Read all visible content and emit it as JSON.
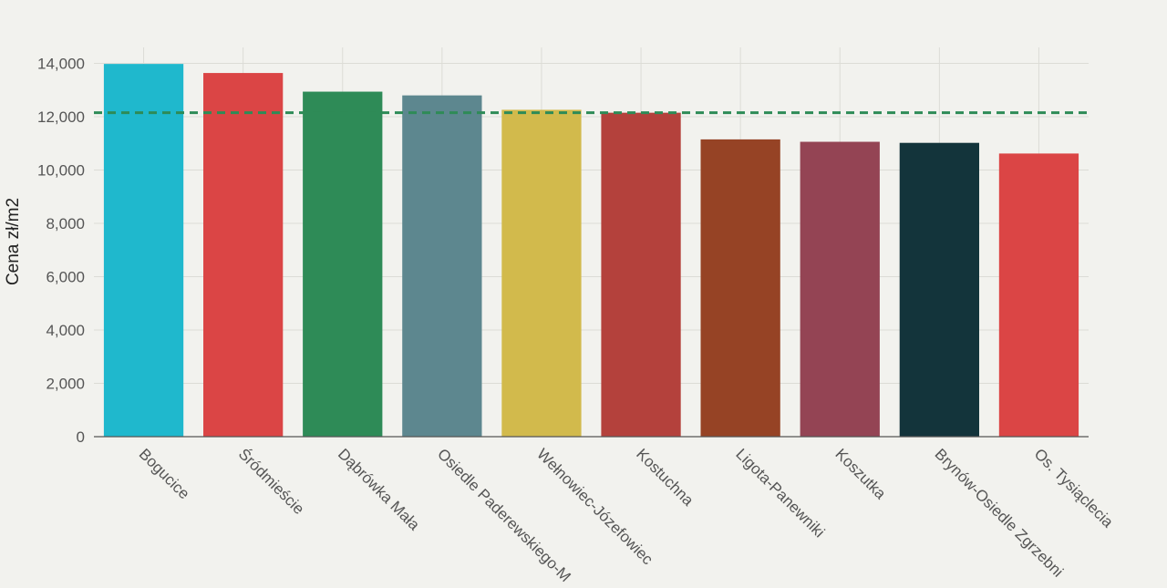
{
  "chart_data": {
    "type": "bar",
    "ylabel": "Cena zł/m2",
    "xlabel": "",
    "ylim": [
      0,
      14600
    ],
    "yticks": [
      0,
      2000,
      4000,
      6000,
      8000,
      10000,
      12000,
      14000
    ],
    "ytick_labels": [
      "0",
      "2,000",
      "4,000",
      "6,000",
      "8,000",
      "10,000",
      "12,000",
      "14,000"
    ],
    "categories": [
      "Bogucice",
      "Śródmieście",
      "Dąbrówka Mała",
      "Osiedle Paderewskiego-M",
      "Wełnowiec-Józefowiec",
      "Kostuchna",
      "Ligota-Panewniki",
      "Koszutka",
      "Brynów-Osiedle Zgrzebni",
      "Os. Tysiąclecia"
    ],
    "values": [
      13980,
      13640,
      12940,
      12800,
      12260,
      12150,
      11150,
      11060,
      11020,
      10620
    ],
    "colors": [
      "#1fb8cd",
      "#db4545",
      "#2e8b57",
      "#5d878f",
      "#d2ba4c",
      "#b4413c",
      "#964325",
      "#944454",
      "#13343b",
      "#db4545"
    ],
    "reference_line": {
      "value": 12150,
      "color": "#2e8b57",
      "style": "dashed"
    },
    "grid": true,
    "legend": "none"
  }
}
